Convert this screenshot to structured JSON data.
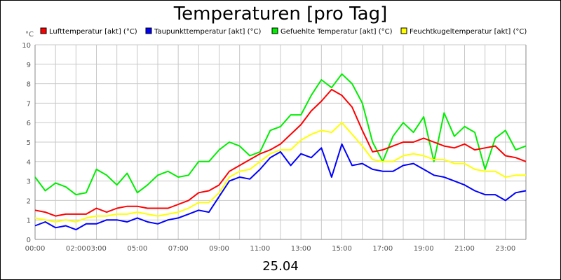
{
  "chart_data": {
    "type": "line",
    "title": "Temperaturen [pro Tag]",
    "xlabel": "25.04",
    "ylabel": "°C",
    "ylim": [
      0,
      10
    ],
    "yticks": [
      "0",
      "1",
      "2",
      "3",
      "4",
      "5",
      "6",
      "7",
      "8",
      "9",
      "10"
    ],
    "xlim": [
      0,
      24
    ],
    "xticks": [
      {
        "x": 0,
        "label": "00:00"
      },
      {
        "x": 2,
        "label": "02:00"
      },
      {
        "x": 3,
        "label": "03:00"
      },
      {
        "x": 5,
        "label": "05:00"
      },
      {
        "x": 7,
        "label": "07:00"
      },
      {
        "x": 9,
        "label": "09:00"
      },
      {
        "x": 11,
        "label": "11:00"
      },
      {
        "x": 13,
        "label": "13:00"
      },
      {
        "x": 15,
        "label": "15:00"
      },
      {
        "x": 17,
        "label": "17:00"
      },
      {
        "x": 19,
        "label": "19:00"
      },
      {
        "x": 21,
        "label": "21:00"
      },
      {
        "x": 23,
        "label": "23:00"
      }
    ],
    "grid": true,
    "legend_placement": "top",
    "x": [
      0,
      0.5,
      1,
      1.5,
      2,
      2.5,
      3,
      3.5,
      4,
      4.5,
      5,
      5.5,
      6,
      6.5,
      7,
      7.5,
      8,
      8.5,
      9,
      9.5,
      10,
      10.5,
      11,
      11.5,
      12,
      12.5,
      13,
      13.5,
      14,
      14.5,
      15,
      15.5,
      16,
      16.5,
      17,
      17.5,
      18,
      18.5,
      19,
      19.5,
      20,
      20.5,
      21,
      21.5,
      22,
      22.5,
      23,
      23.5,
      24
    ],
    "series": [
      {
        "name": "Lufttemperatur [akt] (°C)",
        "color": "#ff0000",
        "values": [
          1.5,
          1.4,
          1.2,
          1.3,
          1.3,
          1.3,
          1.6,
          1.4,
          1.6,
          1.7,
          1.7,
          1.6,
          1.6,
          1.6,
          1.8,
          2.0,
          2.4,
          2.5,
          2.8,
          3.5,
          3.8,
          4.1,
          4.4,
          4.6,
          4.9,
          5.4,
          5.9,
          6.6,
          7.1,
          7.7,
          7.4,
          6.8,
          5.6,
          4.5,
          4.6,
          4.8,
          5.0,
          5.0,
          5.2,
          5.0,
          4.8,
          4.7,
          4.9,
          4.6,
          4.7,
          4.8,
          4.3,
          4.2,
          4.0
        ]
      },
      {
        "name": "Taupunkttemperatur [akt] (°C)",
        "color": "#0000ff",
        "values": [
          0.7,
          0.9,
          0.6,
          0.7,
          0.5,
          0.8,
          0.8,
          1.0,
          1.0,
          0.9,
          1.1,
          0.9,
          0.8,
          1.0,
          1.1,
          1.3,
          1.5,
          1.4,
          2.2,
          3.0,
          3.2,
          3.1,
          3.6,
          4.2,
          4.5,
          3.8,
          4.4,
          4.2,
          4.7,
          3.2,
          4.9,
          3.8,
          3.9,
          3.6,
          3.5,
          3.5,
          3.8,
          3.9,
          3.6,
          3.3,
          3.2,
          3.0,
          2.8,
          2.5,
          2.3,
          2.3,
          2.0,
          2.4,
          2.5
        ]
      },
      {
        "name": "Gefuehlte Temperatur [akt] (°C)",
        "color": "#00ee00",
        "values": [
          3.2,
          2.5,
          2.9,
          2.7,
          2.3,
          2.4,
          3.6,
          3.3,
          2.8,
          3.4,
          2.4,
          2.8,
          3.3,
          3.5,
          3.2,
          3.3,
          4.0,
          4.0,
          4.6,
          5.0,
          4.8,
          4.3,
          4.5,
          5.6,
          5.8,
          6.4,
          6.4,
          7.4,
          8.2,
          7.8,
          8.5,
          8.0,
          7.0,
          5.0,
          4.0,
          5.3,
          6.0,
          5.5,
          6.3,
          4.0,
          6.5,
          5.3,
          5.8,
          5.5,
          3.6,
          5.2,
          5.6,
          4.6,
          4.8
        ]
      },
      {
        "name": "Feuchtkugeltemperatur [akt] (°C)",
        "color": "#ffff00",
        "values": [
          1.1,
          1.0,
          0.9,
          1.0,
          0.9,
          1.1,
          1.2,
          1.2,
          1.3,
          1.3,
          1.4,
          1.3,
          1.2,
          1.3,
          1.4,
          1.6,
          1.9,
          1.9,
          2.4,
          3.2,
          3.5,
          3.6,
          4.0,
          4.4,
          4.6,
          4.6,
          5.1,
          5.4,
          5.6,
          5.5,
          6.0,
          5.4,
          4.8,
          4.1,
          4.0,
          4.0,
          4.3,
          4.4,
          4.3,
          4.1,
          4.1,
          3.9,
          3.9,
          3.6,
          3.5,
          3.5,
          3.2,
          3.3,
          3.3
        ]
      }
    ]
  }
}
